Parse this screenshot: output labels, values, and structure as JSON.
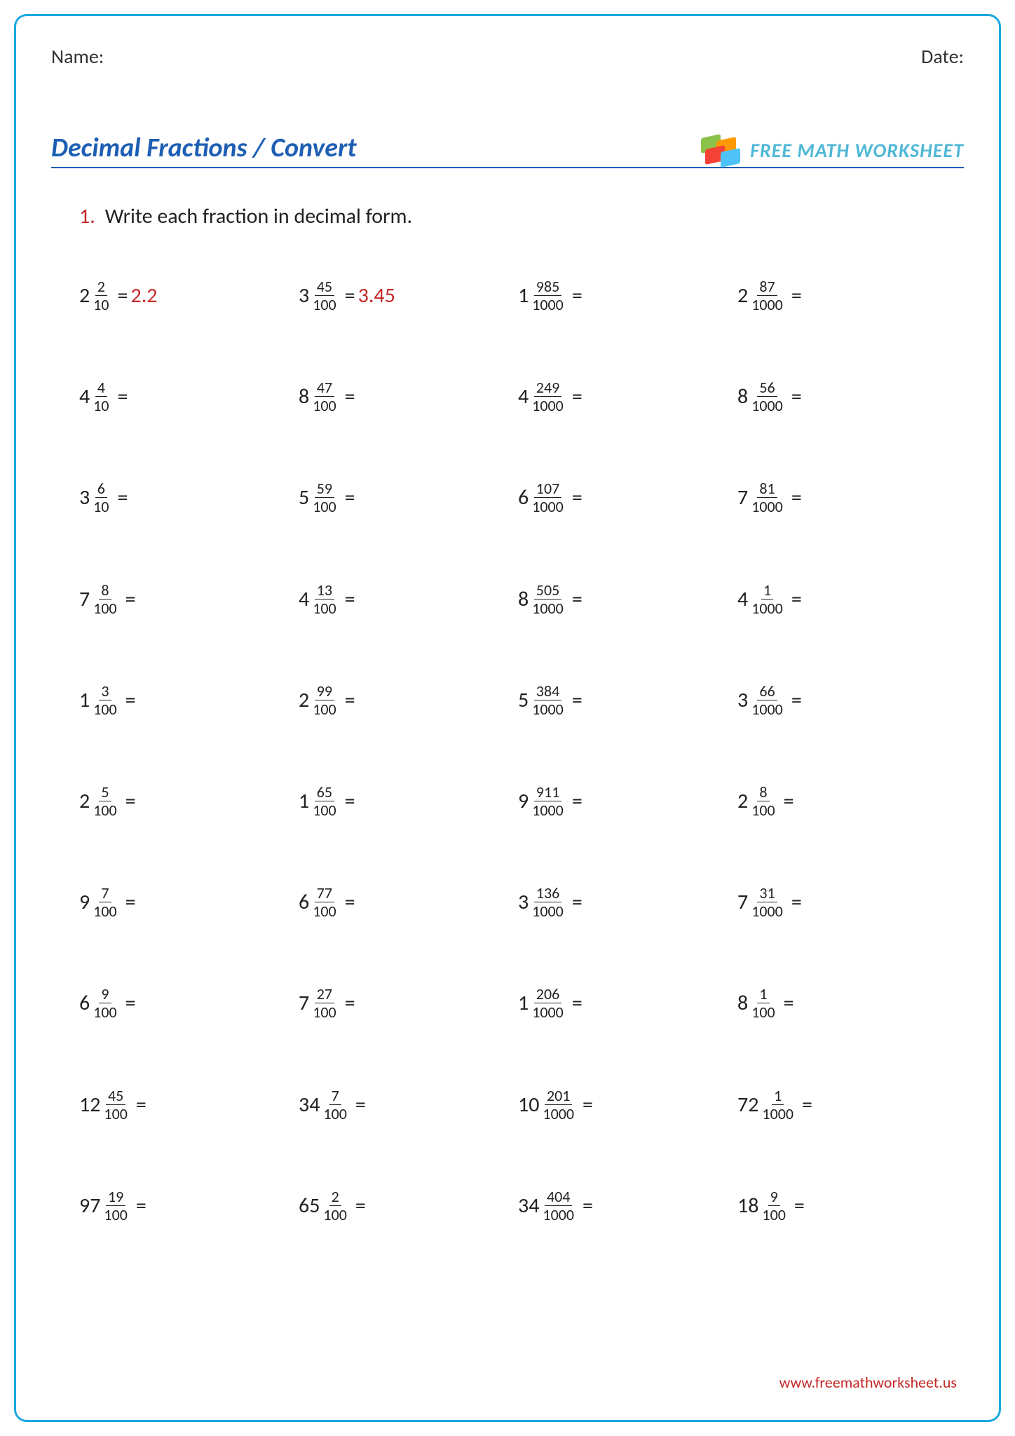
{
  "header": {
    "name_label": "Name:",
    "date_label": "Date:"
  },
  "title": "Decimal Fractions / Convert",
  "brand": {
    "text": "FREE MATH WORKSHEET",
    "block_colors": [
      "#8bc34a",
      "#ff9800",
      "#f44336",
      "#4fc3f7"
    ]
  },
  "instruction": {
    "number": "1.",
    "text": "Write each fraction in decimal form."
  },
  "answer_color": "#c62828",
  "problems": [
    {
      "whole": "2",
      "num": "2",
      "den": "10",
      "answer": "2.2"
    },
    {
      "whole": "3",
      "num": "45",
      "den": "100",
      "answer": "3.45"
    },
    {
      "whole": "1",
      "num": "985",
      "den": "1000",
      "answer": ""
    },
    {
      "whole": "2",
      "num": "87",
      "den": "1000",
      "answer": ""
    },
    {
      "whole": "4",
      "num": "4",
      "den": "10",
      "answer": ""
    },
    {
      "whole": "8",
      "num": "47",
      "den": "100",
      "answer": ""
    },
    {
      "whole": "4",
      "num": "249",
      "den": "1000",
      "answer": ""
    },
    {
      "whole": "8",
      "num": "56",
      "den": "1000",
      "answer": ""
    },
    {
      "whole": "3",
      "num": "6",
      "den": "10",
      "answer": ""
    },
    {
      "whole": "5",
      "num": "59",
      "den": "100",
      "answer": ""
    },
    {
      "whole": "6",
      "num": "107",
      "den": "1000",
      "answer": ""
    },
    {
      "whole": "7",
      "num": "81",
      "den": "1000",
      "answer": ""
    },
    {
      "whole": "7",
      "num": "8",
      "den": "100",
      "answer": ""
    },
    {
      "whole": "4",
      "num": "13",
      "den": "100",
      "answer": ""
    },
    {
      "whole": "8",
      "num": "505",
      "den": "1000",
      "answer": ""
    },
    {
      "whole": "4",
      "num": "1",
      "den": "1000",
      "answer": ""
    },
    {
      "whole": "1",
      "num": "3",
      "den": "100",
      "answer": ""
    },
    {
      "whole": "2",
      "num": "99",
      "den": "100",
      "answer": ""
    },
    {
      "whole": "5",
      "num": "384",
      "den": "1000",
      "answer": ""
    },
    {
      "whole": "3",
      "num": "66",
      "den": "1000",
      "answer": ""
    },
    {
      "whole": "2",
      "num": "5",
      "den": "100",
      "answer": ""
    },
    {
      "whole": "1",
      "num": "65",
      "den": "100",
      "answer": ""
    },
    {
      "whole": "9",
      "num": "911",
      "den": "1000",
      "answer": ""
    },
    {
      "whole": "2",
      "num": "8",
      "den": "100",
      "answer": ""
    },
    {
      "whole": "9",
      "num": "7",
      "den": "100",
      "answer": ""
    },
    {
      "whole": "6",
      "num": "77",
      "den": "100",
      "answer": ""
    },
    {
      "whole": "3",
      "num": "136",
      "den": "1000",
      "answer": ""
    },
    {
      "whole": "7",
      "num": "31",
      "den": "1000",
      "answer": ""
    },
    {
      "whole": "6",
      "num": "9",
      "den": "100",
      "answer": ""
    },
    {
      "whole": "7",
      "num": "27",
      "den": "100",
      "answer": ""
    },
    {
      "whole": "1",
      "num": "206",
      "den": "1000",
      "answer": ""
    },
    {
      "whole": "8",
      "num": "1",
      "den": "100",
      "answer": ""
    },
    {
      "whole": "12",
      "num": "45",
      "den": "100",
      "answer": ""
    },
    {
      "whole": "34",
      "num": "7",
      "den": "100",
      "answer": ""
    },
    {
      "whole": "10",
      "num": "201",
      "den": "1000",
      "answer": ""
    },
    {
      "whole": "72",
      "num": "1",
      "den": "1000",
      "answer": ""
    },
    {
      "whole": "97",
      "num": "19",
      "den": "100",
      "answer": ""
    },
    {
      "whole": "65",
      "num": "2",
      "den": "100",
      "answer": ""
    },
    {
      "whole": "34",
      "num": "404",
      "den": "1000",
      "answer": ""
    },
    {
      "whole": "18",
      "num": "9",
      "den": "100",
      "answer": ""
    }
  ],
  "footer_url": "www.freemathworksheet.us"
}
